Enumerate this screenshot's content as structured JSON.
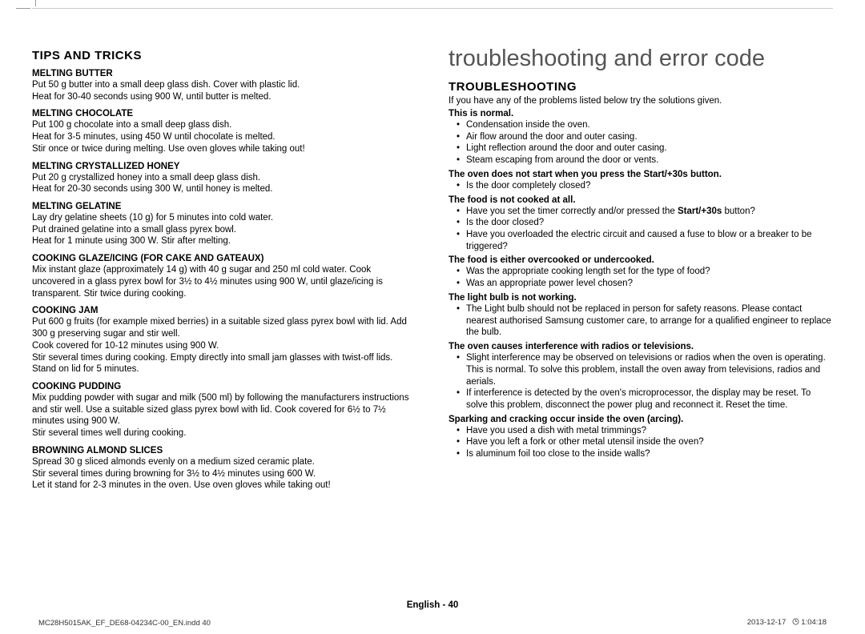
{
  "left": {
    "sectionTitle": "TIPS AND TRICKS",
    "items": [
      {
        "head": "MELTING BUTTER",
        "body": "Put 50 g butter into a small deep glass dish. Cover with plastic lid.\nHeat for 30-40 seconds using 900 W, until butter is melted."
      },
      {
        "head": "MELTING CHOCOLATE",
        "body": "Put 100 g chocolate into a small deep glass dish.\nHeat for 3-5 minutes, using 450 W until chocolate is melted.\nStir once or twice during melting. Use oven gloves while taking out!"
      },
      {
        "head": "MELTING CRYSTALLIZED HONEY",
        "body": "Put 20 g crystallized honey into a small deep glass dish.\nHeat for 20-30 seconds using 300 W, until honey is melted."
      },
      {
        "head": "MELTING GELATINE",
        "body": "Lay dry gelatine sheets (10 g) for 5 minutes into cold water.\nPut drained gelatine into a small glass pyrex bowl.\nHeat for 1 minute using 300 W. Stir after melting."
      },
      {
        "head": "COOKING GLAZE/ICING (FOR CAKE AND GATEAUX)",
        "body": "Mix instant glaze (approximately 14 g) with 40 g sugar and 250 ml cold water. Cook uncovered in a glass pyrex bowl for 3½ to 4½ minutes using 900 W, until glaze/icing is transparent. Stir twice during cooking."
      },
      {
        "head": "COOKING JAM",
        "body": "Put 600 g fruits (for example mixed berries) in a suitable sized glass pyrex bowl with lid. Add 300 g preserving sugar and stir well.\nCook covered for 10-12 minutes using 900 W.\nStir several times during cooking. Empty directly into small jam glasses with twist-off lids. Stand on lid for 5 minutes."
      },
      {
        "head": "COOKING PUDDING",
        "body": "Mix pudding powder with sugar and milk (500 ml) by following the manufacturers instructions and stir well. Use a suitable sized glass pyrex bowl with lid. Cook covered for 6½ to 7½ minutes using 900 W.\nStir several times well during cooking."
      },
      {
        "head": "BROWNING ALMOND SLICES",
        "body": "Spread 30 g sliced almonds evenly on a medium sized ceramic plate.\nStir several times during browning for 3½ to 4½ minutes using 600 W.\nLet it stand for 2-3 minutes in the oven. Use oven gloves while taking out!"
      }
    ]
  },
  "right": {
    "bigTitle": "troubleshooting and error code",
    "sectionTitle": "TROUBLESHOOTING",
    "intro": "If you have any of the problems listed below try the solutions given.",
    "blocks": [
      {
        "head": "This is normal.",
        "bullets": [
          "Condensation inside the oven.",
          "Air flow around the door and outer casing.",
          "Light reflection around the door and outer casing.",
          "Steam escaping from around the door or vents."
        ]
      },
      {
        "head": "The oven does not start when you press the Start/+30s button.",
        "bullets": [
          "Is the door completely closed?"
        ]
      },
      {
        "head": "The food is not cooked at all.",
        "bullets": [
          "Have you set the timer correctly and/or pressed the <b>Start/+30s</b> button?",
          "Is the door closed?",
          "Have you overloaded the electric circuit and caused a fuse to blow or a breaker to be triggered?"
        ]
      },
      {
        "head": "The food is either overcooked or undercooked.",
        "bullets": [
          "Was the appropriate cooking length set for the type of food?",
          "Was an appropriate power level chosen?"
        ]
      },
      {
        "head": "The light bulb is not working.",
        "bullets": [
          "The Light bulb should not be replaced in person for safety reasons. Please contact nearest authorised Samsung customer care, to arrange for a qualified engineer to replace the bulb."
        ]
      },
      {
        "head": "The oven causes interference with radios or televisions.",
        "bullets": [
          "Slight interference may be observed on televisions or radios when the oven is operating. This is normal. To solve this problem, install the oven away from televisions, radios and aerials.",
          "If interference is detected by the oven's microprocessor, the display may be reset. To solve this problem, disconnect the power plug and reconnect it. Reset the time."
        ]
      },
      {
        "head": "Sparking and cracking occur inside the oven (arcing).",
        "bullets": [
          "Have you used a dish with metal trimmings?",
          "Have you left a fork or other metal utensil inside the oven?",
          "Is aluminum foil too close to the inside walls?"
        ]
      }
    ]
  },
  "footer": {
    "center": "English - 40",
    "left": "MC28H5015AK_EF_DE68-04234C-00_EN.indd   40",
    "rightDate": "2013-12-17",
    "rightTime": "1:04:18"
  }
}
